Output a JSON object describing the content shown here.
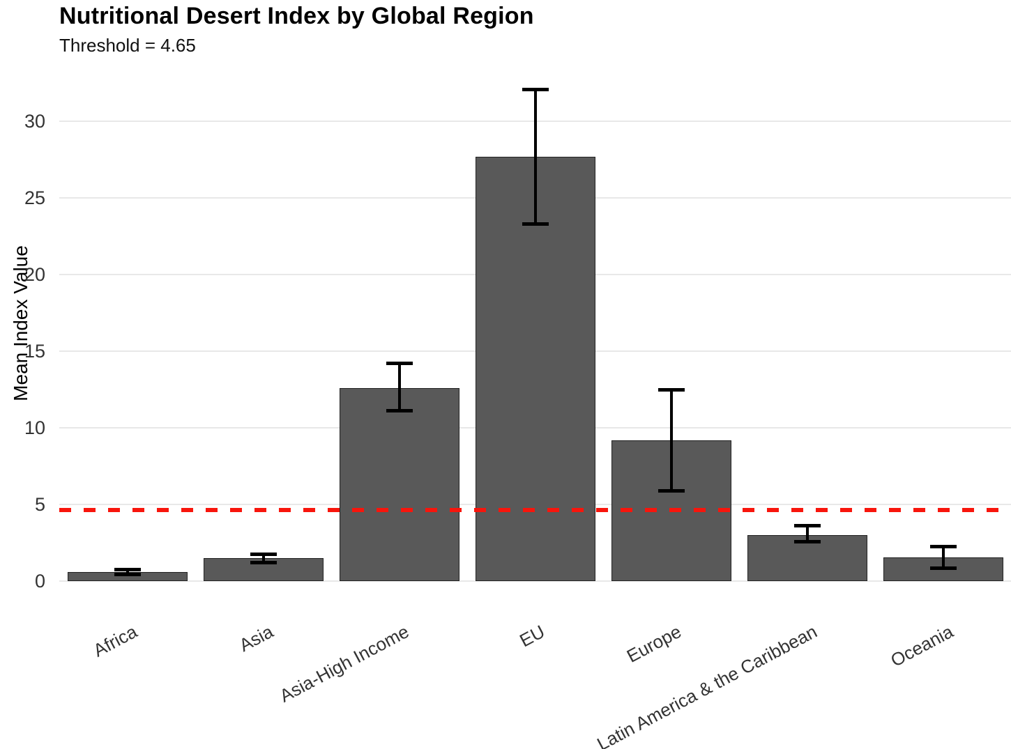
{
  "chart_data": {
    "type": "bar",
    "title": "Nutritional Desert Index by Global Region",
    "subtitle": "Threshold = 4.65",
    "ylabel": "Mean Index Value",
    "xlabel": "",
    "categories": [
      "Africa",
      "Asia",
      "Asia-High Income",
      "EU",
      "Europe",
      "Latin America & the Caribbean",
      "Oceania"
    ],
    "values": [
      0.6,
      1.5,
      12.6,
      27.7,
      9.2,
      3.0,
      1.55
    ],
    "error_low": [
      0.45,
      1.2,
      11.1,
      23.3,
      5.9,
      2.55,
      0.85
    ],
    "error_high": [
      0.75,
      1.75,
      14.2,
      32.1,
      12.5,
      3.6,
      2.25
    ],
    "threshold": 4.65,
    "yticks": [
      0,
      5,
      10,
      15,
      20,
      25,
      30
    ],
    "ylim": [
      0,
      33.6
    ],
    "grid": true,
    "legend": "none",
    "colors": {
      "bar_fill": "#595959",
      "bar_border": "#222222",
      "error_bar": "#000000",
      "threshold": "#f8150c",
      "gridline": "#e8e8e8",
      "axis_text": "#333333",
      "title": "#000000"
    }
  }
}
